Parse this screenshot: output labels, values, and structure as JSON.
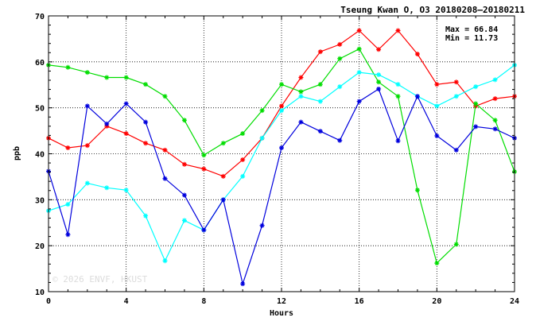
{
  "chart_data": {
    "type": "line",
    "title": "Tseung Kwan O, O3 20180208–20180211",
    "xlabel": "Hours",
    "ylabel": "ppb",
    "xlim": [
      0,
      24
    ],
    "ylim": [
      10,
      70
    ],
    "x_ticks": [
      0,
      4,
      8,
      12,
      16,
      20,
      24
    ],
    "y_ticks": [
      10,
      20,
      30,
      40,
      50,
      60,
      70
    ],
    "grid": true,
    "grid_style": "dotted",
    "stats": {
      "max_label": "Max = 66.84",
      "min_label": "Min = 11.73"
    },
    "watermark": "© 2026  ENVF, HKUST",
    "x": [
      0,
      1,
      2,
      3,
      4,
      5,
      6,
      7,
      8,
      9,
      10,
      11,
      12,
      13,
      14,
      15,
      16,
      17,
      18,
      19,
      20,
      21,
      22,
      23,
      24
    ],
    "series": [
      {
        "color": "#ff0000",
        "values": [
          43.4,
          41.3,
          41.8,
          46.0,
          44.4,
          42.3,
          40.8,
          37.7,
          36.7,
          35.1,
          38.7,
          43.4,
          50.4,
          56.6,
          62.2,
          63.8,
          66.8,
          62.7,
          66.8,
          61.7,
          55.1,
          55.6,
          50.4,
          52.0,
          52.5
        ]
      },
      {
        "color": "#00dd00",
        "values": [
          59.3,
          58.8,
          57.7,
          56.6,
          56.6,
          55.1,
          52.5,
          47.3,
          39.7,
          42.3,
          44.4,
          49.4,
          55.1,
          53.5,
          55.1,
          60.7,
          62.8,
          55.6,
          52.5,
          32.1,
          16.2,
          20.3,
          50.9,
          47.3,
          36.1
        ]
      },
      {
        "color": "#00ffff",
        "values": [
          27.6,
          29.0,
          33.6,
          32.6,
          32.1,
          26.5,
          16.7,
          25.5,
          23.4,
          30.0,
          35.1,
          43.4,
          49.4,
          52.5,
          51.4,
          54.6,
          57.7,
          57.2,
          55.1,
          52.5,
          50.4,
          52.5,
          54.6,
          56.1,
          59.3
        ]
      },
      {
        "color": "#0000dd",
        "values": [
          36.2,
          22.4,
          50.4,
          46.5,
          50.9,
          46.9,
          34.6,
          31.0,
          23.4,
          30.0,
          11.7,
          24.4,
          41.3,
          46.9,
          44.9,
          42.9,
          51.4,
          54.1,
          42.8,
          52.5,
          43.9,
          40.8,
          45.9,
          45.4,
          43.4
        ]
      }
    ]
  }
}
